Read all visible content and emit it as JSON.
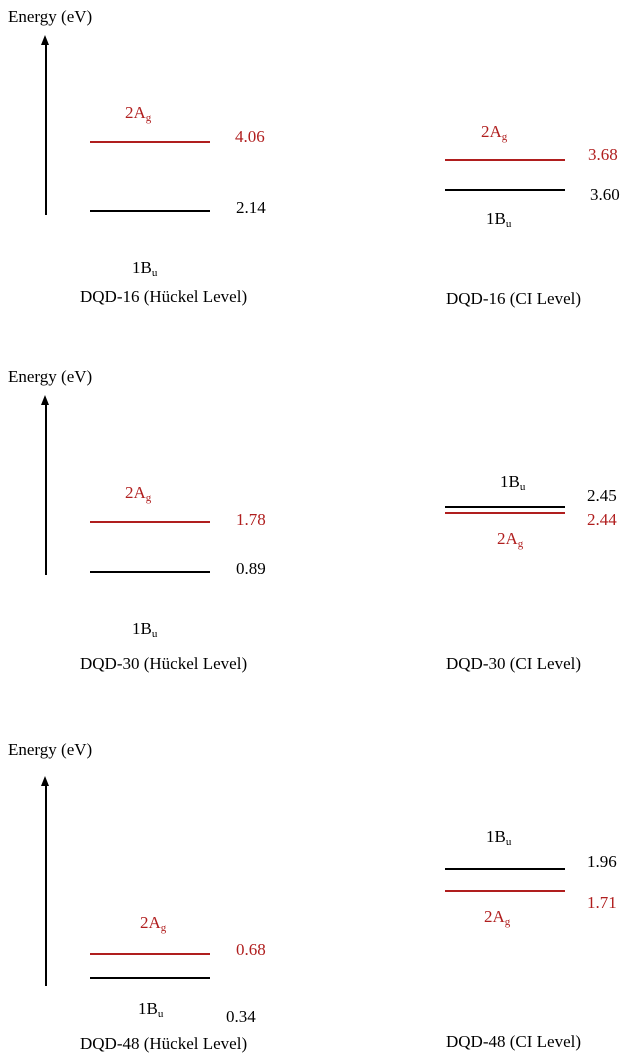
{
  "axis_label": "Energy (eV)",
  "colors": {
    "ag": "#b01e1e",
    "bu": "#000000"
  },
  "panels": [
    {
      "huckel": {
        "title": "DQD-16 (Hückel Level)",
        "ag": {
          "state": "2A",
          "sub": "g",
          "value": "4.06"
        },
        "bu": {
          "state": "1B",
          "sub": "u",
          "value": "2.14"
        }
      },
      "ci": {
        "title": "DQD-16 (CI Level)",
        "ag": {
          "state": "2A",
          "sub": "g",
          "value": "3.68"
        },
        "bu": {
          "state": "1B",
          "sub": "u",
          "value": "3.60"
        }
      }
    },
    {
      "huckel": {
        "title": "DQD-30 (Hückel Level)",
        "ag": {
          "state": "2A",
          "sub": "g",
          "value": "1.78"
        },
        "bu": {
          "state": "1B",
          "sub": "u",
          "value": "0.89"
        }
      },
      "ci": {
        "title": "DQD-30 (CI Level)",
        "ag": {
          "state": "2A",
          "sub": "g",
          "value": "2.44"
        },
        "bu": {
          "state": "1B",
          "sub": "u",
          "value": "2.45"
        }
      }
    },
    {
      "huckel": {
        "title": "DQD-48 (Hückel Level)",
        "ag": {
          "state": "2A",
          "sub": "g",
          "value": "0.68"
        },
        "bu": {
          "state": "1B",
          "sub": "u",
          "value": "0.34"
        }
      },
      "ci": {
        "title": "DQD-48 (CI Level)",
        "ag": {
          "state": "2A",
          "sub": "g",
          "value": "1.71"
        },
        "bu": {
          "state": "1B",
          "sub": "u",
          "value": "1.96"
        }
      }
    }
  ]
}
